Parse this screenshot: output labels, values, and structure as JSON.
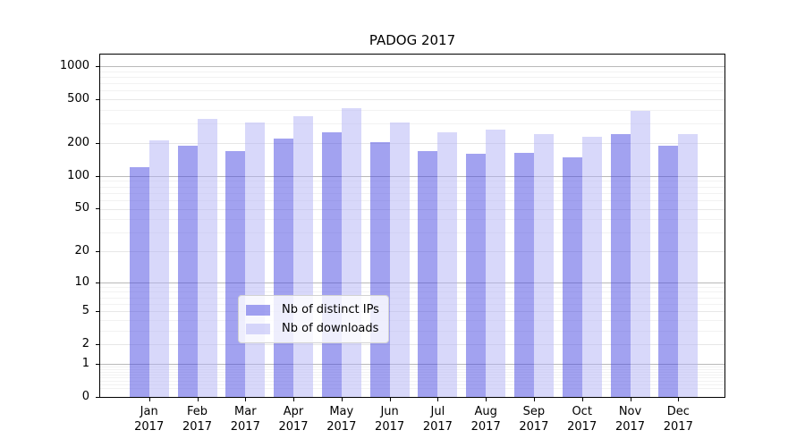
{
  "chart_data": {
    "type": "bar",
    "title": "PADOG 2017",
    "categories": [
      "Jan",
      "Feb",
      "Mar",
      "Apr",
      "May",
      "Jun",
      "Jul",
      "Aug",
      "Sep",
      "Oct",
      "Nov",
      "Dec"
    ],
    "year_label": "2017",
    "series": [
      {
        "name": "Nb of distinct IPs",
        "color": "rgba(70,70,225,0.5)",
        "values": [
          120,
          190,
          168,
          220,
          250,
          205,
          170,
          160,
          162,
          148,
          240,
          188
        ]
      },
      {
        "name": "Nb of downloads",
        "color": "rgba(178,178,245,0.5)",
        "values": [
          210,
          330,
          310,
          350,
          415,
          310,
          250,
          265,
          240,
          230,
          395,
          240
        ]
      }
    ],
    "yscale": "symlog",
    "yticks": [
      0,
      1,
      2,
      5,
      10,
      20,
      50,
      100,
      200,
      500,
      1000
    ],
    "ylim": [
      0,
      1276
    ],
    "xlabel": "",
    "ylabel": "",
    "grid": true,
    "legend_position": "lower-center"
  }
}
